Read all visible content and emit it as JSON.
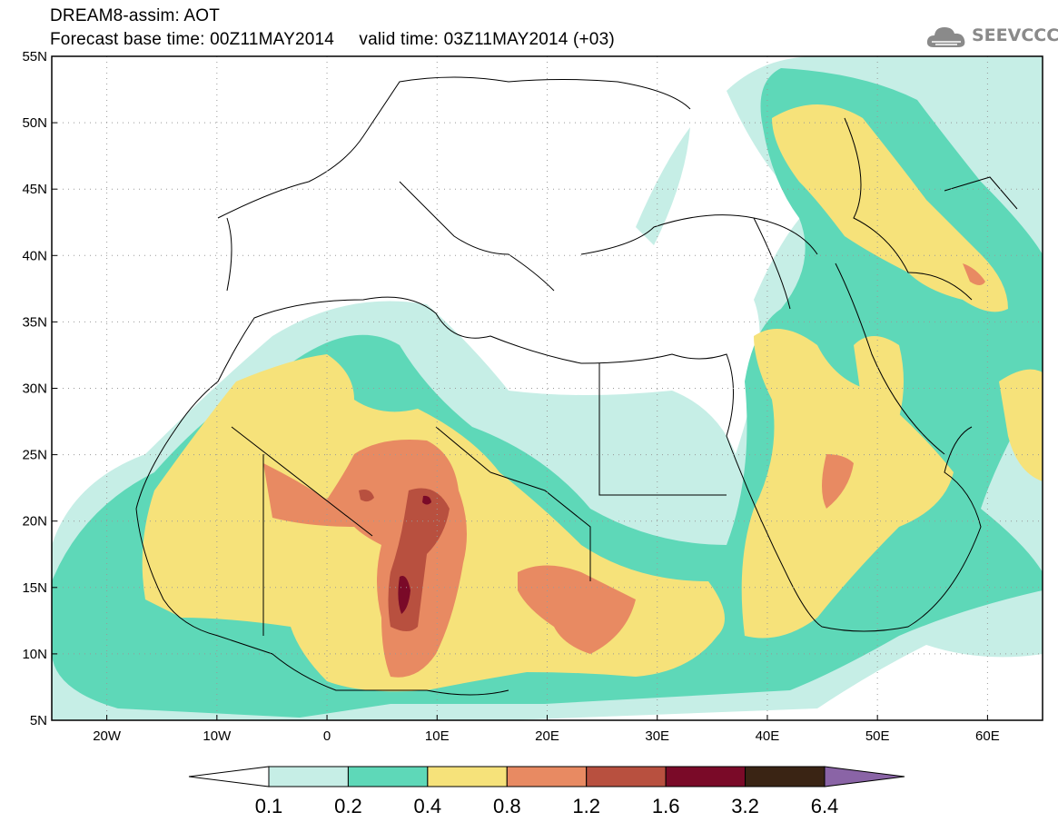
{
  "header": {
    "title_line1": "DREAM8-assim: AOT",
    "title_line2": "Forecast base time: 00Z11MAY2014     valid time: 03Z11MAY2014 (+03)"
  },
  "logo": {
    "text": "SEEVCCC",
    "icon": "cloud-icon"
  },
  "map": {
    "lon_range": [
      -25,
      65
    ],
    "lat_range": [
      5,
      55
    ],
    "x_ticks": [
      "20W",
      "10W",
      "0",
      "10E",
      "20E",
      "30E",
      "40E",
      "50E",
      "60E"
    ],
    "y_ticks": [
      "5N",
      "10N",
      "15N",
      "20N",
      "25N",
      "30N",
      "35N",
      "40N",
      "45N",
      "50N",
      "55N"
    ]
  },
  "colorbar": {
    "labels": [
      "0.1",
      "0.2",
      "0.4",
      "0.8",
      "1.2",
      "1.6",
      "3.2",
      "6.4"
    ],
    "colors": [
      "#c6eee6",
      "#5ed8b8",
      "#f6e27a",
      "#e88a62",
      "#b8503f",
      "#7a0a28",
      "#3a2414"
    ],
    "under_color": "#ffffff",
    "over_color": "#8a64a6"
  },
  "legend_palette": {
    "c1": "#c6eee6",
    "c2": "#5ed8b8",
    "c3": "#f6e27a",
    "c4": "#e88a62",
    "c5": "#b8503f",
    "c6": "#7a0a28"
  }
}
